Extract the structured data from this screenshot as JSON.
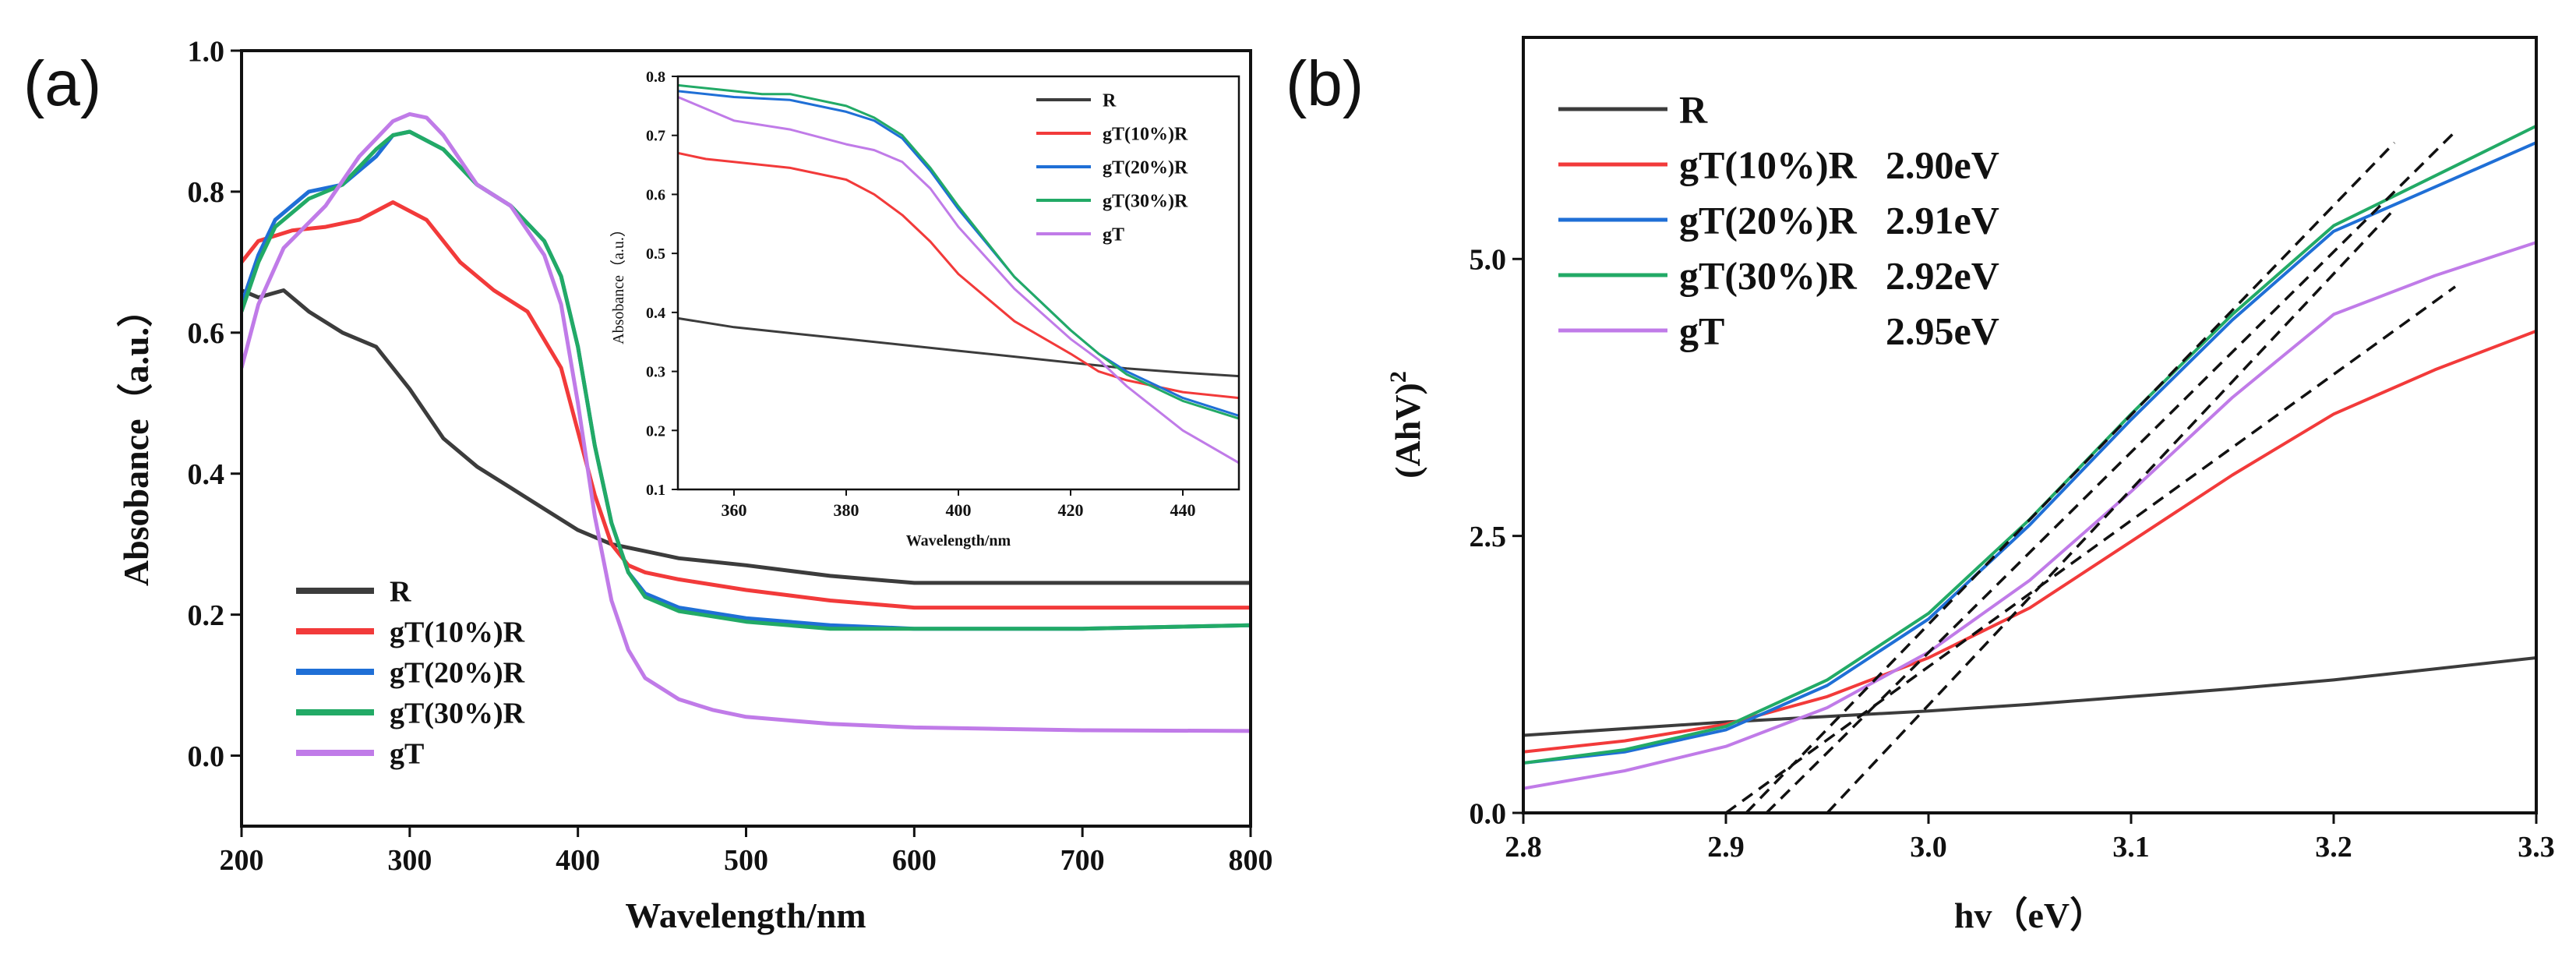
{
  "colors": {
    "R": "#3c3c3c",
    "gT(10%)R": "#f23a3a",
    "gT(20%)R": "#1f6fd6",
    "gT(30%)R": "#22aa66",
    "gT": "#c07be8",
    "fit": "#111111"
  },
  "chart_data": [
    {
      "id": "a",
      "panel_label": "(a)",
      "type": "line",
      "xlabel": "Wavelength/nm",
      "ylabel": "Absobance（a.u.）",
      "xlim": [
        200,
        800
      ],
      "ylim": [
        -0.1,
        1.0
      ],
      "xticks": [
        200,
        300,
        400,
        500,
        600,
        700,
        800
      ],
      "yticks": [
        0.0,
        0.2,
        0.4,
        0.6,
        0.8,
        1.0
      ],
      "ytick_labels": [
        "0.0",
        "0.2",
        "0.4",
        "0.6",
        "0.8",
        "1.0"
      ],
      "legend": [
        "R",
        "gT(10%)R",
        "gT(20%)R",
        "gT(30%)R",
        "gT"
      ],
      "series": [
        {
          "name": "R",
          "x": [
            200,
            210,
            225,
            240,
            260,
            280,
            300,
            320,
            340,
            360,
            380,
            400,
            420,
            440,
            460,
            500,
            550,
            600,
            650,
            700,
            800
          ],
          "y": [
            0.66,
            0.65,
            0.66,
            0.63,
            0.6,
            0.58,
            0.52,
            0.45,
            0.41,
            0.38,
            0.35,
            0.32,
            0.3,
            0.29,
            0.28,
            0.27,
            0.255,
            0.245,
            0.245,
            0.245,
            0.245
          ]
        },
        {
          "name": "gT(10%)R",
          "x": [
            200,
            210,
            230,
            250,
            270,
            290,
            310,
            330,
            350,
            370,
            390,
            400,
            410,
            420,
            430,
            440,
            460,
            500,
            550,
            600,
            700,
            800
          ],
          "y": [
            0.7,
            0.73,
            0.745,
            0.75,
            0.76,
            0.785,
            0.76,
            0.7,
            0.66,
            0.63,
            0.55,
            0.46,
            0.37,
            0.3,
            0.27,
            0.26,
            0.25,
            0.235,
            0.22,
            0.21,
            0.21,
            0.21
          ]
        },
        {
          "name": "gT(20%)R",
          "x": [
            200,
            210,
            220,
            240,
            260,
            280,
            290,
            300,
            320,
            340,
            360,
            380,
            390,
            400,
            410,
            420,
            430,
            440,
            460,
            500,
            550,
            600,
            700,
            800
          ],
          "y": [
            0.64,
            0.71,
            0.76,
            0.8,
            0.81,
            0.85,
            0.88,
            0.885,
            0.86,
            0.81,
            0.78,
            0.73,
            0.68,
            0.58,
            0.44,
            0.33,
            0.26,
            0.23,
            0.21,
            0.195,
            0.185,
            0.18,
            0.18,
            0.185
          ]
        },
        {
          "name": "gT(30%)R",
          "x": [
            200,
            210,
            220,
            240,
            260,
            280,
            290,
            300,
            320,
            340,
            360,
            380,
            390,
            400,
            410,
            420,
            430,
            440,
            460,
            500,
            550,
            600,
            700,
            800
          ],
          "y": [
            0.63,
            0.7,
            0.75,
            0.79,
            0.81,
            0.86,
            0.88,
            0.885,
            0.86,
            0.81,
            0.78,
            0.73,
            0.68,
            0.58,
            0.44,
            0.33,
            0.26,
            0.225,
            0.205,
            0.19,
            0.18,
            0.18,
            0.18,
            0.185
          ]
        },
        {
          "name": "gT",
          "x": [
            200,
            210,
            225,
            250,
            270,
            290,
            300,
            310,
            320,
            340,
            360,
            380,
            390,
            400,
            410,
            420,
            430,
            440,
            460,
            480,
            500,
            550,
            600,
            650,
            700,
            800
          ],
          "y": [
            0.55,
            0.64,
            0.72,
            0.78,
            0.85,
            0.9,
            0.91,
            0.905,
            0.88,
            0.81,
            0.78,
            0.71,
            0.64,
            0.5,
            0.34,
            0.22,
            0.15,
            0.11,
            0.08,
            0.065,
            0.055,
            0.045,
            0.04,
            0.038,
            0.036,
            0.035
          ]
        }
      ]
    },
    {
      "id": "a_inset",
      "type": "line",
      "xlabel": "Wavelength/nm",
      "ylabel": "Absobance（a.u.）",
      "xlim": [
        350,
        450
      ],
      "ylim": [
        0.1,
        0.8
      ],
      "xticks": [
        360,
        380,
        400,
        420,
        440
      ],
      "yticks": [
        0.1,
        0.2,
        0.3,
        0.4,
        0.5,
        0.6,
        0.7,
        0.8
      ],
      "ytick_labels": [
        "0.1",
        "0.2",
        "0.3",
        "0.4",
        "0.5",
        "0.6",
        "0.7",
        "0.8"
      ],
      "legend": [
        "R",
        "gT(10%)R",
        "gT(20%)R",
        "gT(30%)R",
        "gT"
      ],
      "series": [
        {
          "name": "R",
          "x": [
            350,
            360,
            370,
            380,
            390,
            400,
            410,
            420,
            430,
            440,
            450
          ],
          "y": [
            0.39,
            0.375,
            0.365,
            0.355,
            0.345,
            0.335,
            0.325,
            0.315,
            0.305,
            0.298,
            0.292
          ]
        },
        {
          "name": "gT(10%)R",
          "x": [
            350,
            355,
            360,
            370,
            380,
            385,
            390,
            395,
            400,
            410,
            420,
            425,
            430,
            440,
            450
          ],
          "y": [
            0.67,
            0.66,
            0.655,
            0.645,
            0.625,
            0.6,
            0.565,
            0.52,
            0.465,
            0.385,
            0.33,
            0.3,
            0.285,
            0.265,
            0.255
          ]
        },
        {
          "name": "gT(20%)R",
          "x": [
            350,
            360,
            370,
            380,
            385,
            390,
            395,
            400,
            410,
            420,
            425,
            430,
            440,
            450
          ],
          "y": [
            0.775,
            0.765,
            0.76,
            0.74,
            0.725,
            0.695,
            0.64,
            0.575,
            0.46,
            0.37,
            0.33,
            0.3,
            0.255,
            0.225
          ]
        },
        {
          "name": "gT(30%)R",
          "x": [
            350,
            360,
            365,
            370,
            380,
            385,
            390,
            395,
            400,
            410,
            420,
            425,
            430,
            440,
            450
          ],
          "y": [
            0.785,
            0.775,
            0.77,
            0.77,
            0.75,
            0.73,
            0.7,
            0.645,
            0.58,
            0.46,
            0.37,
            0.33,
            0.295,
            0.25,
            0.22
          ]
        },
        {
          "name": "gT",
          "x": [
            350,
            355,
            360,
            370,
            380,
            385,
            390,
            395,
            400,
            410,
            420,
            425,
            430,
            440,
            450
          ],
          "y": [
            0.765,
            0.745,
            0.725,
            0.71,
            0.685,
            0.675,
            0.655,
            0.61,
            0.545,
            0.44,
            0.355,
            0.32,
            0.275,
            0.2,
            0.145
          ]
        }
      ]
    },
    {
      "id": "b",
      "panel_label": "(b)",
      "type": "line",
      "xlabel": "hv（eV）",
      "ylabel_base": "(AhV)",
      "ylabel_sup": "2",
      "xlim": [
        2.8,
        3.3
      ],
      "ylim": [
        0.0,
        7.0
      ],
      "xticks": [
        2.8,
        2.9,
        3.0,
        3.1,
        3.2,
        3.3
      ],
      "xtick_labels": [
        "2.8",
        "2.9",
        "3.0",
        "3.1",
        "3.2",
        "3.3"
      ],
      "yticks": [
        0.0,
        2.5,
        5.0
      ],
      "ytick_labels": [
        "0.0",
        "2.5",
        "5.0"
      ],
      "legend": [
        {
          "name": "R",
          "gap": ""
        },
        {
          "name": "gT(10%)R",
          "gap": "2.90eV"
        },
        {
          "name": "gT(20%)R",
          "gap": "2.91eV"
        },
        {
          "name": "gT(30%)R",
          "gap": "2.92eV"
        },
        {
          "name": "gT",
          "gap": "2.95eV"
        }
      ],
      "series": [
        {
          "name": "R",
          "x": [
            2.8,
            2.9,
            3.0,
            3.05,
            3.1,
            3.15,
            3.2,
            3.25,
            3.3
          ],
          "y": [
            0.7,
            0.82,
            0.92,
            0.98,
            1.05,
            1.12,
            1.2,
            1.3,
            1.4
          ]
        },
        {
          "name": "gT(10%)R",
          "x": [
            2.8,
            2.85,
            2.9,
            2.95,
            3.0,
            3.05,
            3.1,
            3.15,
            3.2,
            3.25,
            3.3
          ],
          "y": [
            0.55,
            0.65,
            0.8,
            1.05,
            1.4,
            1.85,
            2.45,
            3.05,
            3.6,
            4.0,
            4.35
          ]
        },
        {
          "name": "gT(20%)R",
          "x": [
            2.8,
            2.85,
            2.9,
            2.95,
            3.0,
            3.05,
            3.1,
            3.15,
            3.2,
            3.25,
            3.3
          ],
          "y": [
            0.45,
            0.55,
            0.75,
            1.15,
            1.75,
            2.6,
            3.55,
            4.45,
            5.25,
            5.65,
            6.05
          ]
        },
        {
          "name": "gT(30%)R",
          "x": [
            2.8,
            2.85,
            2.9,
            2.95,
            3.0,
            3.05,
            3.1,
            3.15,
            3.2,
            3.25,
            3.3
          ],
          "y": [
            0.45,
            0.57,
            0.78,
            1.2,
            1.8,
            2.65,
            3.6,
            4.5,
            5.3,
            5.75,
            6.2
          ]
        },
        {
          "name": "gT",
          "x": [
            2.8,
            2.85,
            2.9,
            2.95,
            3.0,
            3.05,
            3.1,
            3.15,
            3.2,
            3.25,
            3.3
          ],
          "y": [
            0.22,
            0.38,
            0.6,
            0.95,
            1.45,
            2.1,
            2.9,
            3.75,
            4.5,
            4.85,
            5.15
          ]
        }
      ],
      "fit_lines": [
        {
          "name": "gT(10%)R",
          "x": [
            2.9,
            3.26
          ],
          "y": [
            0.0,
            4.75
          ]
        },
        {
          "name": "gT(20%)R",
          "x": [
            2.91,
            3.23
          ],
          "y": [
            0.0,
            6.05
          ]
        },
        {
          "name": "gT(30%)R",
          "x": [
            2.92,
            3.26
          ],
          "y": [
            0.0,
            6.15
          ]
        },
        {
          "name": "gT",
          "x": [
            2.95,
            3.23
          ],
          "y": [
            0.0,
            5.45
          ]
        }
      ]
    }
  ]
}
